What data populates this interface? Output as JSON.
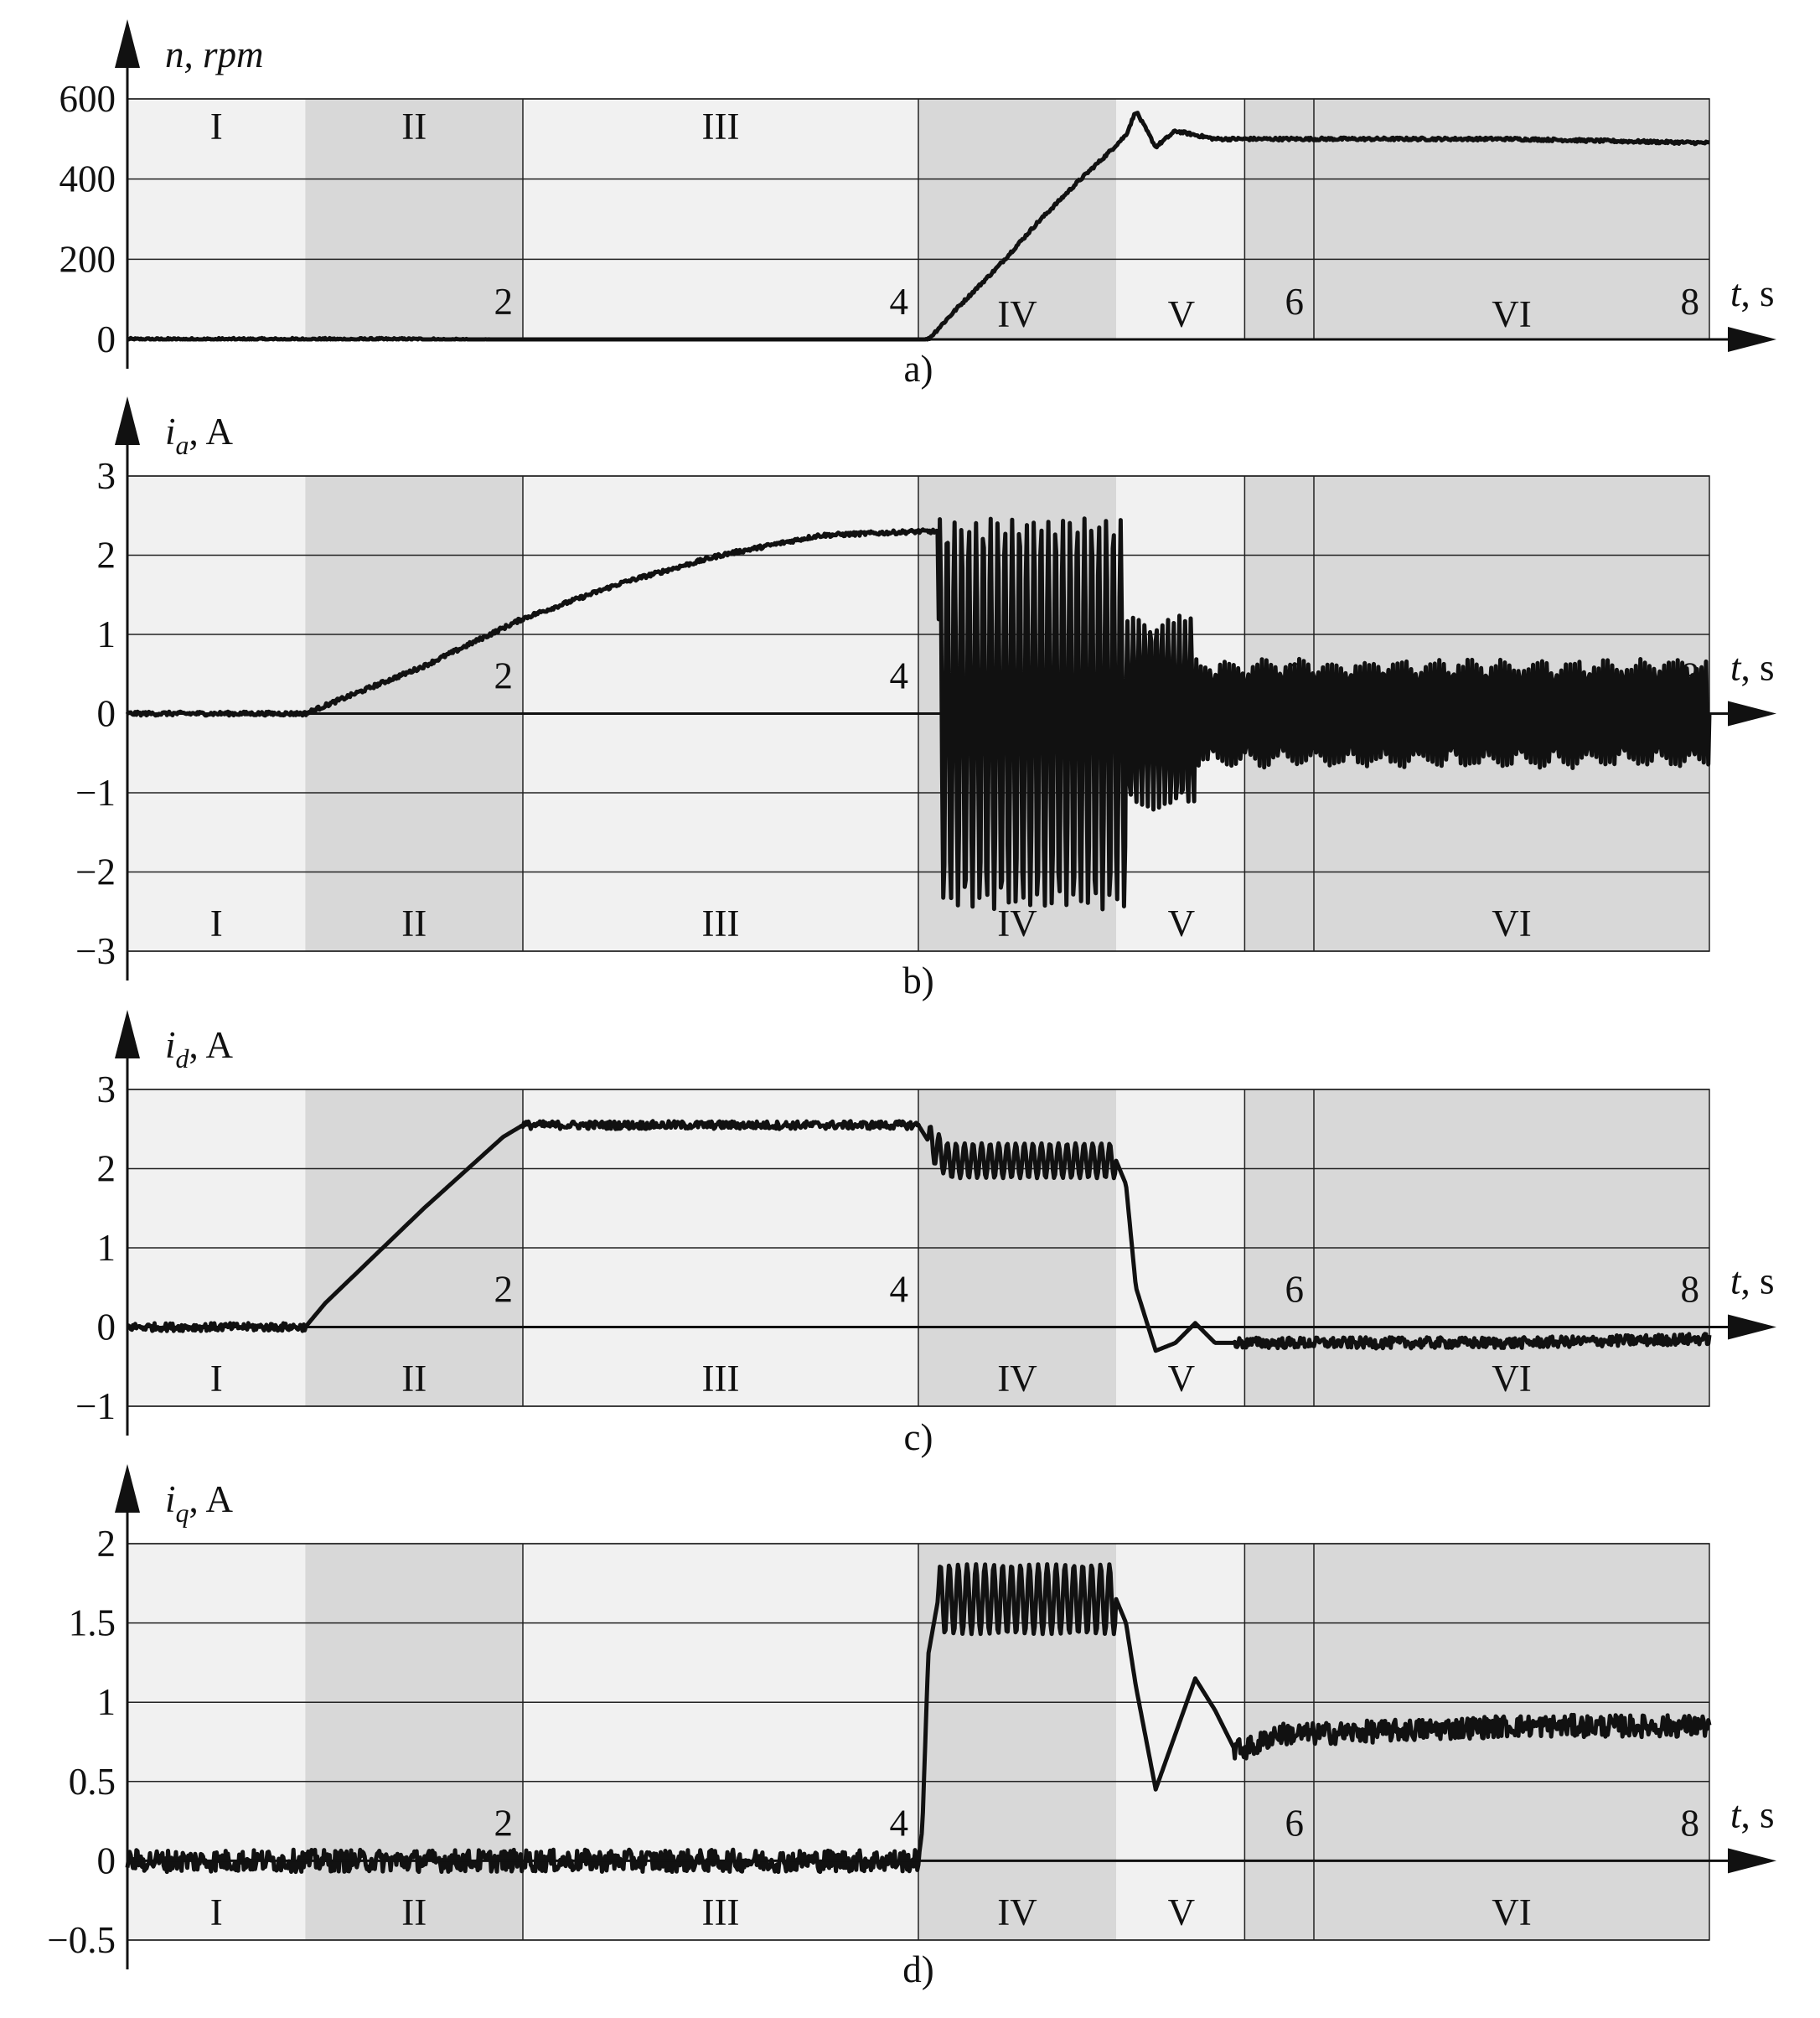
{
  "figure": {
    "xaxis_label_italic": "t",
    "xaxis_label_rest": ", s",
    "region_labels": [
      "I",
      "II",
      "III",
      "IV",
      "V",
      "VI"
    ],
    "region_bounds": [
      0,
      0.9,
      2,
      4,
      5,
      5.65,
      6,
      8
    ],
    "region_band_colors": [
      "#f1f1f1",
      "#d8d8d8",
      "#f1f1f1",
      "#d8d8d8",
      "#f1f1f1",
      "#d8d8d8",
      "#d8d8d8"
    ],
    "line_color": "#111111"
  },
  "chart_data": [
    {
      "type": "line",
      "panel": "a)",
      "ylabel_main": "n, ",
      "ylabel_sub": "",
      "ylabel_unit": "rpm",
      "ylabel_unit_italic": true,
      "yticks": [
        "600",
        "400",
        "200",
        "0"
      ],
      "yvalues": [
        600,
        400,
        200,
        0
      ],
      "ylim": [
        0,
        600
      ],
      "xlim": [
        0,
        8
      ],
      "xticks": [
        "2",
        "4",
        "6",
        "8"
      ],
      "region_label_row": "mixed",
      "series": [
        {
          "x": [
            0,
            0.5,
            1.0,
            1.5,
            2.0,
            2.5,
            3.0,
            3.5,
            4.0,
            4.05,
            4.2,
            4.4,
            4.6,
            4.8,
            4.95,
            5.05,
            5.1,
            5.2,
            5.3,
            5.4,
            5.5,
            6.0,
            7.0,
            8.0
          ],
          "y": [
            0,
            0,
            0,
            0,
            -5,
            -5,
            -5,
            -5,
            -5,
            0,
            80,
            180,
            290,
            390,
            460,
            510,
            570,
            480,
            520,
            510,
            500,
            500,
            500,
            490
          ]
        }
      ]
    },
    {
      "type": "line",
      "panel": "b)",
      "ylabel_main": "i",
      "ylabel_sub": "a",
      "ylabel_unit": ", A",
      "ylabel_unit_italic": false,
      "yticks": [
        "3",
        "2",
        "1",
        "0",
        "−1",
        "−2",
        "−3"
      ],
      "yvalues": [
        3,
        2,
        1,
        0,
        -1,
        -2,
        -3
      ],
      "ylim": [
        -3,
        3
      ],
      "xlim": [
        0,
        8
      ],
      "xticks": [
        "2",
        "4",
        "6",
        "8"
      ],
      "region_label_row": "bottom",
      "series": [
        {
          "x": [
            0,
            0.9,
            1.5,
            2.0,
            2.5,
            3.0,
            3.5,
            4.0
          ],
          "y": [
            0,
            0,
            0.6,
            1.2,
            1.65,
            2.0,
            2.25,
            2.3
          ],
          "oscillation_segments": [
            {
              "x0": 4.0,
              "x1": 4.1,
              "amp": 0.0,
              "mean": 2.3,
              "cycles": 0
            },
            {
              "x0": 4.1,
              "x1": 5.05,
              "amp": 2.45,
              "mean": 0,
              "cycles": 26
            },
            {
              "x0": 5.05,
              "x1": 5.4,
              "amp": 1.2,
              "mean": 0,
              "cycles": 12
            },
            {
              "x0": 5.4,
              "x1": 8.0,
              "amp": 0.65,
              "mean": 0,
              "cycles": 110
            }
          ]
        }
      ]
    },
    {
      "type": "line",
      "panel": "c)",
      "ylabel_main": "i",
      "ylabel_sub": "d",
      "ylabel_unit": ", A",
      "ylabel_unit_italic": false,
      "yticks": [
        "3",
        "2",
        "1",
        "0",
        "−1"
      ],
      "yvalues": [
        3,
        2,
        1,
        0,
        -1
      ],
      "ylim": [
        -1,
        3
      ],
      "xlim": [
        0,
        8
      ],
      "xticks": [
        "2",
        "4",
        "6",
        "8"
      ],
      "region_label_row": "bottom",
      "series": [
        {
          "x": [
            0,
            0.9,
            1.0,
            1.5,
            1.9,
            2.0,
            3.0,
            4.0,
            4.05,
            4.15,
            5.0,
            5.05,
            5.1,
            5.2,
            5.3,
            5.4,
            5.5,
            5.6,
            6.0,
            7.0,
            8.0
          ],
          "y": [
            0,
            0,
            0.3,
            1.5,
            2.4,
            2.55,
            2.55,
            2.55,
            2.35,
            2.1,
            2.1,
            1.8,
            0.5,
            -0.3,
            -0.2,
            0.05,
            -0.2,
            -0.2,
            -0.2,
            -0.2,
            -0.15
          ],
          "noise": [
            {
              "x0": 0,
              "x1": 0.9,
              "amp": 0.05
            },
            {
              "x0": 2.0,
              "x1": 4.0,
              "amp": 0.05
            },
            {
              "x0": 4.05,
              "x1": 5.0,
              "amp": 0.22,
              "cycles": 22
            },
            {
              "x0": 5.6,
              "x1": 8.0,
              "amp": 0.07
            }
          ]
        }
      ]
    },
    {
      "type": "line",
      "panel": "d)",
      "ylabel_main": "i",
      "ylabel_sub": "q",
      "ylabel_unit": ", A",
      "ylabel_unit_italic": false,
      "yticks": [
        "2",
        "1.5",
        "1",
        "0.5",
        "0",
        "−0.5"
      ],
      "yvalues": [
        2,
        1.5,
        1,
        0.5,
        0,
        -0.5
      ],
      "ylim": [
        -0.5,
        2
      ],
      "xlim": [
        0,
        8
      ],
      "xticks": [
        "2",
        "4",
        "6",
        "8"
      ],
      "region_label_row": "bottom",
      "series": [
        {
          "x": [
            0,
            2.0,
            4.0,
            4.02,
            4.05,
            4.1,
            5.0,
            5.05,
            5.1,
            5.2,
            5.3,
            5.4,
            5.5,
            5.6,
            5.7,
            5.8,
            5.9,
            6.0,
            7.0,
            8.0
          ],
          "y": [
            0,
            0,
            0,
            0.2,
            1.3,
            1.65,
            1.65,
            1.5,
            1.1,
            0.45,
            0.8,
            1.15,
            0.95,
            0.7,
            0.72,
            0.8,
            0.8,
            0.8,
            0.85,
            0.85
          ],
          "noise": [
            {
              "x0": 0,
              "x1": 4.0,
              "amp": 0.07
            },
            {
              "x0": 4.1,
              "x1": 5.0,
              "amp": 0.22,
              "cycles": 20
            },
            {
              "x0": 5.6,
              "x1": 8.0,
              "amp": 0.07
            }
          ]
        }
      ]
    }
  ]
}
